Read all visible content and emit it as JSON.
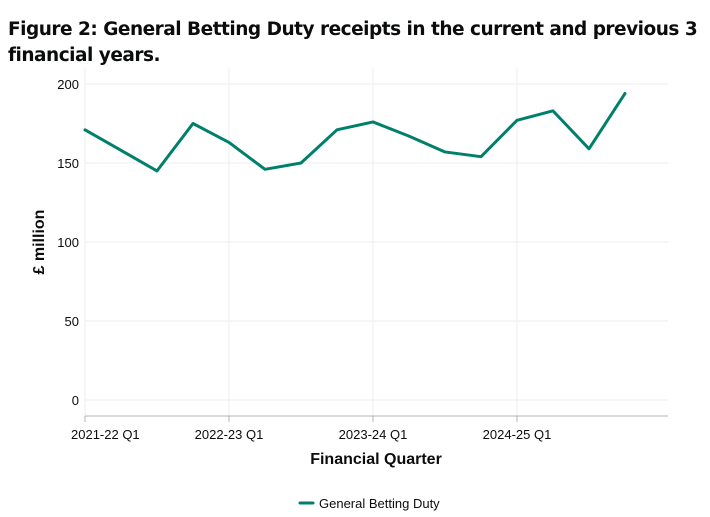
{
  "chart_data": {
    "type": "line",
    "title": "Figure 2: General Betting Duty receipts in the current and previous 3 financial years.",
    "xlabel": "Financial Quarter",
    "ylabel": "£ million",
    "ylim": [
      0,
      210
    ],
    "yticks": [
      0,
      50,
      100,
      150,
      200
    ],
    "grid": true,
    "legend_position": "bottom-center",
    "x": [
      "2021-22 Q1",
      "2021-22 Q2",
      "2021-22 Q3",
      "2021-22 Q4",
      "2022-23 Q1",
      "2022-23 Q2",
      "2022-23 Q3",
      "2022-23 Q4",
      "2023-24 Q1",
      "2023-24 Q2",
      "2023-24 Q3",
      "2023-24 Q4",
      "2024-25 Q1",
      "2024-25 Q2",
      "2024-25 Q3",
      "2024-25 Q4"
    ],
    "x_tick_labels": [
      "2021-22 Q1",
      "2022-23 Q1",
      "2023-24 Q1",
      "2024-25 Q1"
    ],
    "series": [
      {
        "name": "General Betting Duty",
        "color": "#00806b",
        "values": [
          171,
          158,
          145,
          175,
          163,
          146,
          150,
          171,
          176,
          167,
          157,
          154,
          177,
          183,
          159,
          194
        ]
      }
    ]
  }
}
